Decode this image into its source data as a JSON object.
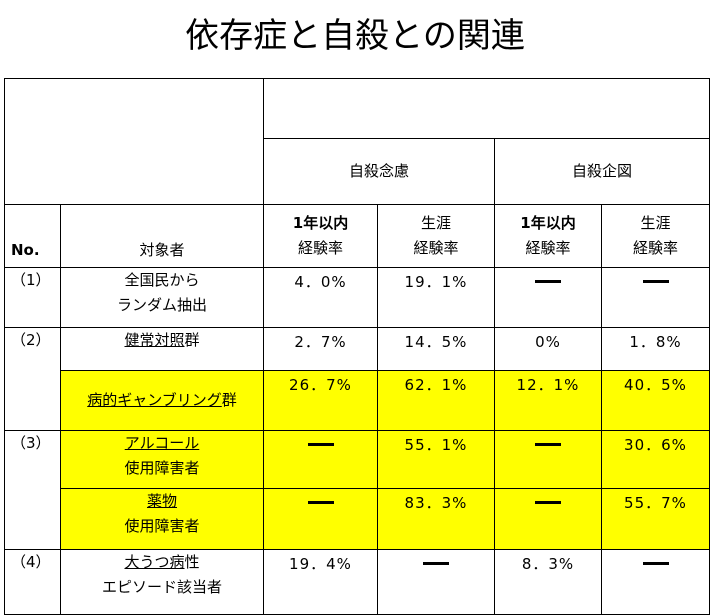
{
  "title": "依存症と自殺との関連",
  "header": {
    "group_ideation": "自殺念慮",
    "group_attempt": "自殺企図",
    "col_no": "No.",
    "col_subject": "対象者",
    "sub_1year_line1": "1年以内",
    "sub_1year_line2": "経験率",
    "sub_life_line1": "生涯",
    "sub_life_line2": "経験率"
  },
  "rows": [
    {
      "no": "（1）",
      "subject_line1": "全国民から",
      "subject_line2": "ランダム抽出",
      "ideation_1y": "4．0%",
      "ideation_life": "19．1%",
      "attempt_1y": "",
      "attempt_life": ""
    },
    {
      "no": "（2）",
      "subject_line1": "健常対照",
      "subject_line1_suffix": "群",
      "ideation_1y": "2．7%",
      "ideation_life": "14．5%",
      "attempt_1y": "0%",
      "attempt_life": "1．8%"
    },
    {
      "no": "",
      "subject_line1": "病的ギャンブリング",
      "subject_line1_suffix": "群",
      "ideation_1y": "26．7%",
      "ideation_life": "62．1%",
      "attempt_1y": "12．1%",
      "attempt_life": "40．5%"
    },
    {
      "no": "（3）",
      "subject_line1": "アルコール",
      "subject_line2": "使用障害者",
      "ideation_1y": "",
      "ideation_life": "55．1%",
      "attempt_1y": "",
      "attempt_life": "30．6%"
    },
    {
      "no": "",
      "subject_line1": "薬物",
      "subject_line2": "使用障害者",
      "ideation_1y": "",
      "ideation_life": "83．3%",
      "attempt_1y": "",
      "attempt_life": "55．7%"
    },
    {
      "no": "（4）",
      "subject_line1": "大うつ病",
      "subject_line1_suffix": "性",
      "subject_line2": "エピソード該当者",
      "ideation_1y": "19．4%",
      "ideation_life": "",
      "attempt_1y": "8．3%",
      "attempt_life": ""
    }
  ]
}
